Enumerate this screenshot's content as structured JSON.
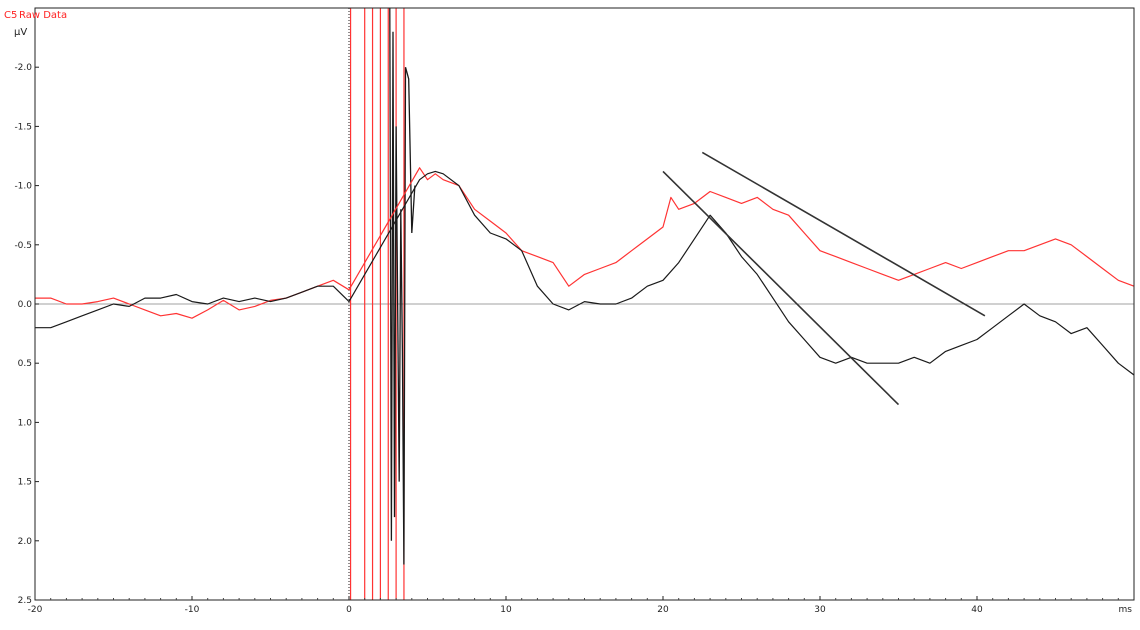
{
  "header": {
    "channel_label": "C5",
    "series_label": "Raw Data",
    "unit_label": "µV"
  },
  "chart_data": {
    "type": "line",
    "title": "",
    "xlabel": "ms",
    "ylabel": "µV",
    "xlim": [
      -20,
      50
    ],
    "ylim": [
      -2.5,
      2.5
    ],
    "y_inverted": true,
    "x_ticks": [
      -20,
      -10,
      0,
      10,
      20,
      30,
      40
    ],
    "y_ticks": [
      -2.0,
      -1.5,
      -1.0,
      -0.5,
      0.0,
      0.5,
      1.0,
      1.5,
      2.0,
      2.5
    ],
    "x_tick_labels": [
      "-20",
      "-10",
      "0",
      "10",
      "20",
      "30",
      "40"
    ],
    "y_tick_labels": [
      "-2.0",
      "-1.5",
      "-1.0",
      "-0.5",
      "0.0",
      "0.5",
      "1.0",
      "1.5",
      "2.0",
      "2.5"
    ],
    "zero_line": true,
    "stimulus_marker_x": 0,
    "artifact_window_ms": [
      0,
      4
    ],
    "grid": false,
    "colors": {
      "raw": "#ff3333",
      "processed": "#1a1a1a",
      "fit": "#333333",
      "zero": "#a0a0a0"
    },
    "series": [
      {
        "name": "Raw Data",
        "color": "#ff3333",
        "x": [
          -20,
          -19,
          -18,
          -17,
          -16,
          -15,
          -14,
          -13,
          -12,
          -11,
          -10,
          -9,
          -8,
          -7,
          -6,
          -5,
          -4,
          -3,
          -2,
          -1,
          0,
          4.5,
          5,
          5.5,
          6,
          7,
          8,
          9,
          10,
          11,
          12,
          13,
          14,
          15,
          16,
          17,
          18,
          19,
          20,
          20.5,
          21,
          22,
          23,
          24,
          25,
          26,
          27,
          28,
          29,
          30,
          31,
          32,
          33,
          34,
          35,
          36,
          37,
          38,
          39,
          40,
          41,
          42,
          43,
          44,
          45,
          46,
          47,
          48,
          49,
          50
        ],
        "y": [
          -0.05,
          -0.05,
          0.0,
          0.0,
          -0.02,
          -0.05,
          0.0,
          0.05,
          0.1,
          0.08,
          0.12,
          0.05,
          -0.03,
          0.05,
          0.02,
          -0.03,
          -0.05,
          -0.1,
          -0.15,
          -0.2,
          -0.12,
          -1.15,
          -1.05,
          -1.1,
          -1.05,
          -1.0,
          -0.8,
          -0.7,
          -0.6,
          -0.45,
          -0.4,
          -0.35,
          -0.15,
          -0.25,
          -0.3,
          -0.35,
          -0.45,
          -0.55,
          -0.65,
          -0.9,
          -0.8,
          -0.85,
          -0.95,
          -0.9,
          -0.85,
          -0.9,
          -0.8,
          -0.75,
          -0.6,
          -0.45,
          -0.4,
          -0.35,
          -0.3,
          -0.25,
          -0.2,
          -0.25,
          -0.3,
          -0.35,
          -0.3,
          -0.35,
          -0.4,
          -0.45,
          -0.45,
          -0.5,
          -0.55,
          -0.5,
          -0.4,
          -0.3,
          -0.2,
          -0.15
        ]
      },
      {
        "name": "",
        "color": "#1a1a1a",
        "x": [
          -20,
          -19,
          -18,
          -17,
          -16,
          -15,
          -14,
          -13,
          -12,
          -11,
          -10,
          -9,
          -8,
          -7,
          -6,
          -5,
          -4,
          -3,
          -2,
          -1,
          0,
          4.5,
          5,
          5.5,
          6,
          7,
          8,
          9,
          10,
          11,
          12,
          13,
          14,
          15,
          16,
          17,
          18,
          19,
          20,
          21,
          22,
          23,
          24,
          25,
          26,
          27,
          28,
          29,
          30,
          31,
          32,
          33,
          34,
          35,
          36,
          37,
          38,
          39,
          40,
          41,
          42,
          43,
          44,
          45,
          46,
          47,
          48,
          49,
          50
        ],
        "y": [
          0.2,
          0.2,
          0.15,
          0.1,
          0.05,
          0.0,
          0.02,
          -0.05,
          -0.05,
          -0.08,
          -0.02,
          0.0,
          -0.05,
          -0.02,
          -0.05,
          -0.02,
          -0.05,
          -0.1,
          -0.15,
          -0.15,
          -0.02,
          -1.05,
          -1.1,
          -1.12,
          -1.1,
          -1.0,
          -0.75,
          -0.6,
          -0.55,
          -0.45,
          -0.15,
          0.0,
          0.05,
          -0.02,
          0.0,
          0.0,
          -0.05,
          -0.15,
          -0.2,
          -0.35,
          -0.55,
          -0.75,
          -0.6,
          -0.4,
          -0.25,
          -0.05,
          0.15,
          0.3,
          0.45,
          0.5,
          0.45,
          0.5,
          0.5,
          0.5,
          0.45,
          0.5,
          0.4,
          0.35,
          0.3,
          0.2,
          0.1,
          0.0,
          0.1,
          0.15,
          0.25,
          0.2,
          0.35,
          0.5,
          0.6
        ]
      },
      {
        "name": "",
        "kind": "fit-line",
        "color": "#333333",
        "x": [
          20,
          35
        ],
        "y": [
          -1.12,
          0.85
        ]
      },
      {
        "name": "",
        "kind": "fit-line",
        "color": "#333333",
        "x": [
          22.5,
          40.5
        ],
        "y": [
          -1.28,
          0.1
        ]
      }
    ]
  }
}
